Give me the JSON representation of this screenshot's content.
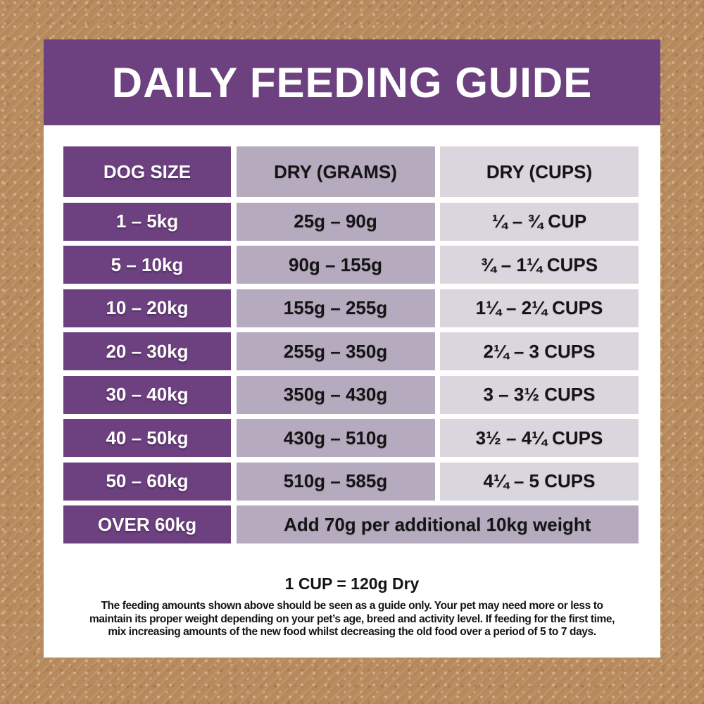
{
  "colors": {
    "background_brown": "#b88b5e",
    "accent_purple": "#6d4080",
    "mauve_medium": "#b6abbe",
    "mauve_light": "#dbd6de",
    "card_white": "#ffffff",
    "text_dark": "#151515"
  },
  "title": "DAILY FEEDING GUIDE",
  "table": {
    "headers": {
      "dog_size": "DOG SIZE",
      "dry_grams": "DRY (GRAMS)",
      "dry_cups": "DRY (CUPS)"
    },
    "rows": [
      {
        "size": "1 – 5kg",
        "grams": "25g – 90g",
        "cups": "¼ – ¾ CUP"
      },
      {
        "size": "5 – 10kg",
        "grams": "90g – 155g",
        "cups": "¾ – 1¼ CUPS"
      },
      {
        "size": "10 – 20kg",
        "grams": "155g – 255g",
        "cups": "1¼ – 2¼ CUPS"
      },
      {
        "size": "20 – 30kg",
        "grams": "255g – 350g",
        "cups": "2¼ – 3 CUPS"
      },
      {
        "size": "30 – 40kg",
        "grams": "350g – 430g",
        "cups": "3 – 3½ CUPS"
      },
      {
        "size": "40 – 50kg",
        "grams": "430g – 510g",
        "cups": "3½ – 4¼ CUPS"
      },
      {
        "size": "50 – 60kg",
        "grams": "510g – 585g",
        "cups": "4¼ – 5 CUPS"
      }
    ],
    "last_row": {
      "size": "OVER 60kg",
      "note": "Add 70g per additional 10kg weight"
    }
  },
  "footnote": {
    "conversion": "1 CUP = 120g Dry",
    "disclaimer_lines": [
      "The feeding amounts shown above should be seen as a guide only. Your pet may need more or less to",
      "maintain its proper weight depending on your pet’s age, breed and activity level. If feeding for the first time,",
      "mix increasing amounts of the new food whilst decreasing the old food over a period of 5 to 7 days."
    ]
  },
  "chart_data": {
    "type": "table",
    "title": "DAILY FEEDING GUIDE",
    "columns": [
      "DOG SIZE",
      "DRY (GRAMS)",
      "DRY (CUPS)"
    ],
    "rows": [
      [
        "1 – 5kg",
        "25g – 90g",
        "¼ – ¾ CUP"
      ],
      [
        "5 – 10kg",
        "90g – 155g",
        "¾ – 1¼ CUPS"
      ],
      [
        "10 – 20kg",
        "155g – 255g",
        "1¼ – 2¼ CUPS"
      ],
      [
        "20 – 30kg",
        "255g – 350g",
        "2¼ – 3 CUPS"
      ],
      [
        "30 – 40kg",
        "350g – 430g",
        "3 – 3½ CUPS"
      ],
      [
        "40 – 50kg",
        "430g – 510g",
        "3½ – 4¼ CUPS"
      ],
      [
        "50 – 60kg",
        "510g – 585g",
        "4¼ – 5 CUPS"
      ],
      [
        "OVER 60kg",
        "Add 70g per additional 10kg weight",
        ""
      ]
    ],
    "notes": [
      "1 CUP = 120g Dry",
      "The feeding amounts shown above should be seen as a guide only. Your pet may need more or less to maintain its proper weight depending on your pet’s age, breed and activity level. If feeding for the first time, mix increasing amounts of the new food whilst decreasing the old food over a period of 5 to 7 days."
    ]
  }
}
